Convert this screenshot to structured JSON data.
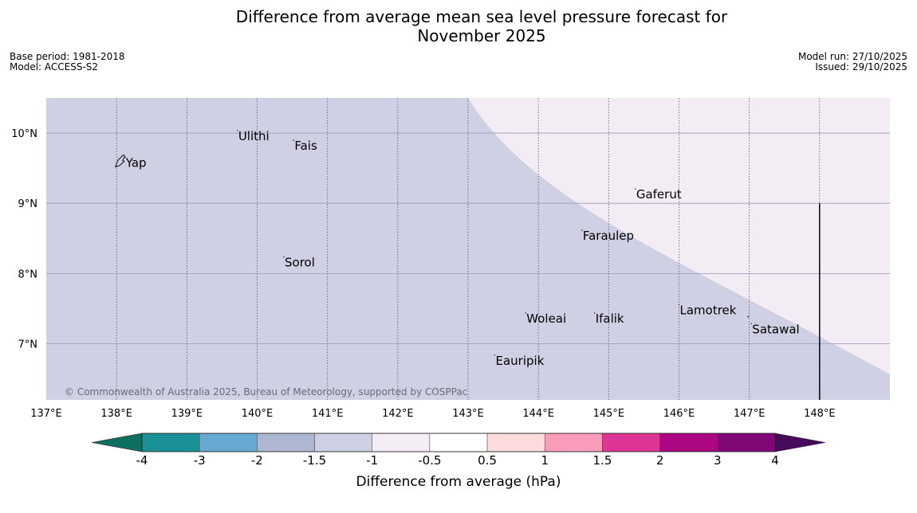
{
  "title_line1": "Difference from average mean sea level pressure forecast for",
  "title_line2": "November 2025",
  "base_period": "Base period: 1981-2018",
  "model": "Model: ACCESS-S2",
  "model_run": "Model run: 27/10/2025",
  "issued": "Issued: 29/10/2025",
  "copyright": "© Commonwealth of Australia 2025, Bureau of Meteorology, supported by COSPPac",
  "map": {
    "lon_range": [
      137,
      149
    ],
    "lat_range": [
      6.2,
      10.5
    ],
    "lon_ticks": [
      {
        "value": 137,
        "label": "137°E"
      },
      {
        "value": 138,
        "label": "138°E"
      },
      {
        "value": 139,
        "label": "139°E"
      },
      {
        "value": 140,
        "label": "140°E"
      },
      {
        "value": 141,
        "label": "141°E"
      },
      {
        "value": 142,
        "label": "142°E"
      },
      {
        "value": 143,
        "label": "143°E"
      },
      {
        "value": 144,
        "label": "144°E"
      },
      {
        "value": 145,
        "label": "145°E"
      },
      {
        "value": 146,
        "label": "146°E"
      },
      {
        "value": 147,
        "label": "147°E"
      },
      {
        "value": 148,
        "label": "148°E"
      }
    ],
    "lat_ticks": [
      {
        "value": 10,
        "label": "10°N"
      },
      {
        "value": 9,
        "label": "9°N"
      },
      {
        "value": 8,
        "label": "8°N"
      },
      {
        "value": 7,
        "label": "7°N"
      }
    ],
    "regions": [
      {
        "category": "-1.5 to -1",
        "color": "#d0d0e4"
      },
      {
        "category": "-1 to -0.5",
        "color": "#f3ecf5"
      }
    ],
    "boundary_lon_at_top": 143.0,
    "boundary_lon_at_bottom": 149.0,
    "meridian_line": {
      "lon": 148,
      "lat_from": 6.2,
      "lat_to": 9
    }
  },
  "places": [
    {
      "name": "Ulithi",
      "lon": 139.72,
      "lat": 9.9
    },
    {
      "name": "Fais",
      "lon": 140.52,
      "lat": 9.76
    },
    {
      "name": "Yap",
      "lon": 138.12,
      "lat": 9.52
    },
    {
      "name": "Gaferut",
      "lon": 145.38,
      "lat": 9.07
    },
    {
      "name": "Faraulep",
      "lon": 144.62,
      "lat": 8.48
    },
    {
      "name": "Sorol",
      "lon": 140.38,
      "lat": 8.1
    },
    {
      "name": "Lamotrek",
      "lon": 146.0,
      "lat": 7.42
    },
    {
      "name": "Woleai",
      "lon": 143.82,
      "lat": 7.3
    },
    {
      "name": "Ifalik",
      "lon": 144.8,
      "lat": 7.3
    },
    {
      "name": "Satawal",
      "lon": 147.03,
      "lat": 7.15
    },
    {
      "name": "Eauripik",
      "lon": 143.38,
      "lat": 6.7
    }
  ],
  "colorbar": {
    "title": "Difference from average (hPa)",
    "ticks": [
      "-4",
      "-3",
      "-2",
      "-1.5",
      "-1",
      "-0.5",
      "0.5",
      "1",
      "1.5",
      "2",
      "3",
      "4"
    ],
    "extend_low_color": "#0e6e60",
    "extend_high_color": "#480a5a",
    "colors": [
      "#1a9197",
      "#66aad3",
      "#aeb7d1",
      "#d0d0e4",
      "#f3ecf5",
      "#ffffff",
      "#fedcdd",
      "#f99dbb",
      "#de3597",
      "#ad0683",
      "#7f0776"
    ]
  }
}
